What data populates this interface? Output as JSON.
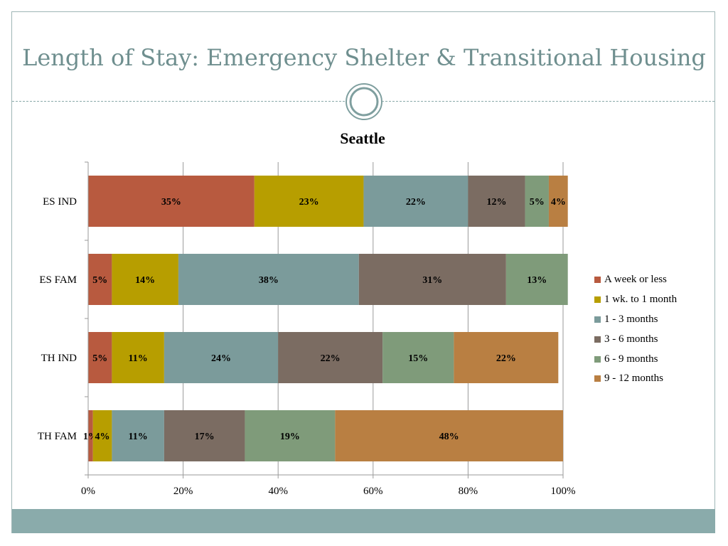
{
  "slide": {
    "title": "Length of Stay: Emergency Shelter & Transitional Housing"
  },
  "colors": {
    "title": "#6f8f8f",
    "footer": "#8aabab",
    "ornament": "#7f9f9f"
  },
  "chart_data": {
    "type": "bar",
    "orientation": "horizontal",
    "stacked": "percent",
    "title": "Seattle",
    "categories": [
      "ES IND",
      "ES FAM",
      "TH IND",
      "TH FAM"
    ],
    "xlim": [
      0,
      100
    ],
    "x_ticks": [
      "0%",
      "20%",
      "40%",
      "60%",
      "80%",
      "100%"
    ],
    "grid": "vertical",
    "legend_position": "right",
    "series": [
      {
        "name": "A week or less",
        "color": "#b85a3f",
        "values": [
          35,
          5,
          5,
          1
        ],
        "labels": [
          "35%",
          "5%",
          "5%",
          "1%"
        ]
      },
      {
        "name": "1 wk. to 1 month",
        "color": "#b79e00",
        "values": [
          23,
          14,
          11,
          4
        ],
        "labels": [
          "23%",
          "14%",
          "11%",
          "4%"
        ]
      },
      {
        "name": "1 - 3 months",
        "color": "#7b9b9b",
        "values": [
          22,
          38,
          24,
          11
        ],
        "labels": [
          "22%",
          "38%",
          "24%",
          "11%"
        ]
      },
      {
        "name": "3 - 6 months",
        "color": "#7b6c62",
        "values": [
          12,
          31,
          22,
          17
        ],
        "labels": [
          "12%",
          "31%",
          "22%",
          "17%"
        ]
      },
      {
        "name": "6 - 9 months",
        "color": "#7f9b7a",
        "values": [
          5,
          13,
          15,
          19
        ],
        "labels": [
          "5%",
          "13%",
          "15%",
          "19%"
        ]
      },
      {
        "name": "9 - 12 months",
        "color": "#b97f42",
        "values": [
          4,
          0,
          22,
          48
        ],
        "labels": [
          "4%",
          "",
          "22%",
          "48%"
        ]
      }
    ]
  }
}
